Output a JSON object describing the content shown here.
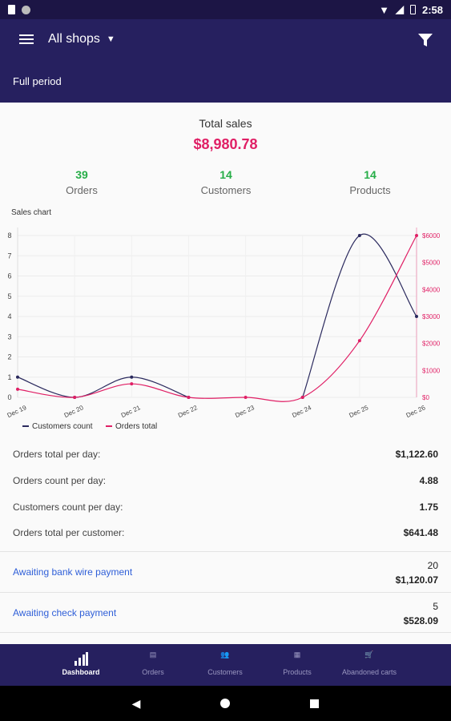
{
  "status_bar": {
    "time": "2:58"
  },
  "app_bar": {
    "shop_selector": "All shops",
    "period": "Full period"
  },
  "summary": {
    "total_title": "Total sales",
    "total_value": "$8,980.78",
    "kpis": [
      {
        "value": "39",
        "label": "Orders"
      },
      {
        "value": "14",
        "label": "Customers"
      },
      {
        "value": "14",
        "label": "Products"
      }
    ]
  },
  "chart_title": "Sales chart",
  "chart_data": {
    "type": "line",
    "title": "Sales chart",
    "x": [
      "Dec 19",
      "Dec 20",
      "Dec 21",
      "Dec 22",
      "Dec 23",
      "Dec 24",
      "Dec 25",
      "Dec 26"
    ],
    "series": [
      {
        "name": "Customers count",
        "axis": "left",
        "color": "#2b2a5e",
        "values": [
          1,
          0,
          1,
          0,
          null,
          0,
          8,
          4
        ]
      },
      {
        "name": "Orders total",
        "axis": "right",
        "color": "#e01f65",
        "values": [
          300,
          0,
          500,
          0,
          0,
          0,
          2100,
          6000
        ]
      }
    ],
    "y_left": {
      "ticks": [
        "0",
        "1",
        "2",
        "3",
        "4",
        "5",
        "6",
        "7",
        "8"
      ],
      "range": [
        0,
        8
      ]
    },
    "y_right": {
      "ticks": [
        "$0",
        "$1000",
        "$2000",
        "$3000",
        "$4000",
        "$5000",
        "$6000"
      ],
      "range": [
        0,
        6000
      ]
    },
    "legend": "bottom-left",
    "grid": true
  },
  "stats": [
    {
      "label": "Orders total per day:",
      "value": "$1,122.60"
    },
    {
      "label": "Orders count per day:",
      "value": "4.88"
    },
    {
      "label": "Customers count per day:",
      "value": "1.75"
    },
    {
      "label": "Orders total per customer:",
      "value": "$641.48"
    }
  ],
  "order_states": [
    {
      "label": "Awaiting bank wire payment",
      "count": "20",
      "amount": "$1,120.07"
    },
    {
      "label": "Awaiting check payment",
      "count": "5",
      "amount": "$528.09"
    }
  ],
  "bottom_nav": [
    {
      "label": "Dashboard",
      "icon": "bar-chart-icon",
      "active": true
    },
    {
      "label": "Orders",
      "icon": "list-icon",
      "active": false
    },
    {
      "label": "Customers",
      "icon": "people-icon",
      "active": false
    },
    {
      "label": "Products",
      "icon": "products-icon",
      "active": false
    },
    {
      "label": "Abandoned carts",
      "icon": "cart-icon",
      "active": false
    }
  ]
}
